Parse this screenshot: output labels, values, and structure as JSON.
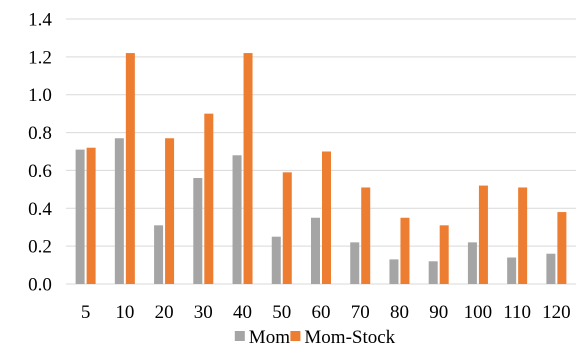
{
  "chart_data": {
    "type": "bar",
    "categories": [
      "5",
      "10",
      "20",
      "30",
      "40",
      "50",
      "60",
      "70",
      "80",
      "90",
      "100",
      "110",
      "120"
    ],
    "series": [
      {
        "name": "Mom",
        "color": "#a5a5a5",
        "values": [
          0.71,
          0.77,
          0.31,
          0.56,
          0.68,
          0.25,
          0.35,
          0.22,
          0.13,
          0.12,
          0.22,
          0.14,
          0.16
        ]
      },
      {
        "name": "Mom-Stock",
        "color": "#ed7d31",
        "values": [
          0.72,
          1.22,
          0.77,
          0.9,
          1.22,
          0.59,
          0.7,
          0.51,
          0.35,
          0.31,
          0.52,
          0.51,
          0.38
        ]
      }
    ],
    "yticks": [
      "0.0",
      "0.2",
      "0.4",
      "0.6",
      "0.8",
      "1.0",
      "1.2",
      "1.4"
    ],
    "ylim": [
      0,
      1.4
    ],
    "title": "",
    "xlabel": "",
    "ylabel": "",
    "grid": true,
    "legend_position": "bottom"
  }
}
